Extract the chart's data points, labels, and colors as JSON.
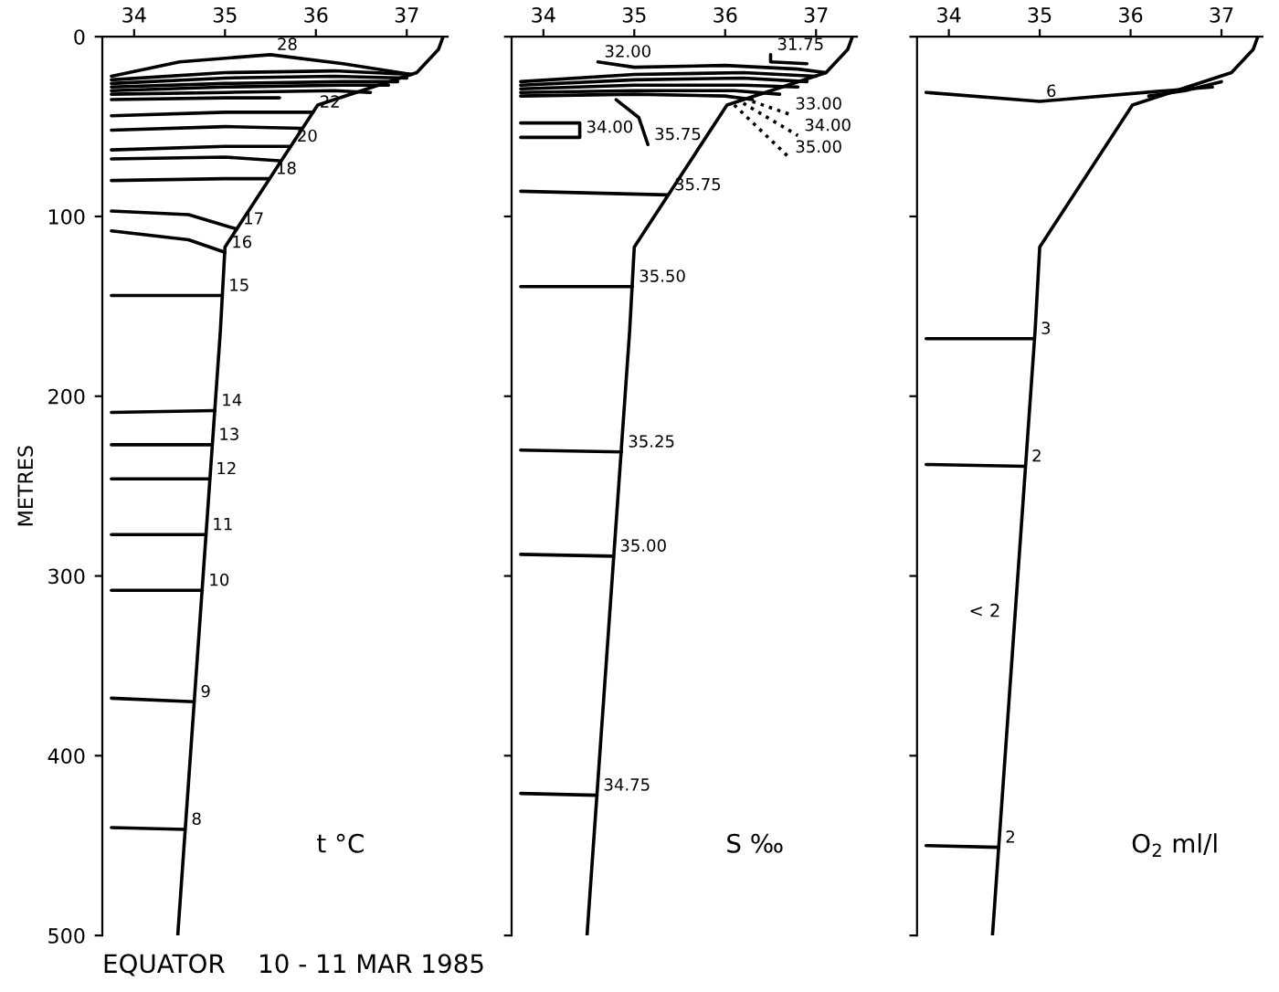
{
  "chart_data": [
    {
      "type": "line",
      "title": "EQUATOR    10 - 11 MAR 1985",
      "ylabel": "METRES",
      "xlim": [
        33.65,
        37.45
      ],
      "ylim": [
        500,
        0
      ],
      "xticks": [
        34,
        35,
        36,
        37
      ],
      "yticks": [
        0,
        100,
        200,
        300,
        400,
        500
      ],
      "grid": false,
      "legend": false,
      "series": [
        {
          "color": "#000000",
          "x": [
            37.4,
            37.35,
            37.11,
            36.02,
            35.0,
            34.95,
            34.48
          ],
          "values": [
            0,
            7,
            20,
            38,
            117,
            163,
            500
          ]
        },
        {
          "color": "#000000",
          "x": [
            33.75,
            34.5,
            35.5,
            36.3,
            37.05
          ],
          "values": [
            22,
            14,
            10,
            15,
            21
          ]
        },
        {
          "color": "#000000",
          "x": [
            33.75,
            35.0,
            36.2,
            37.05
          ],
          "values": [
            24,
            20,
            19,
            21
          ]
        },
        {
          "color": "#000000",
          "x": [
            33.75,
            35.0,
            36.2,
            37.0
          ],
          "values": [
            26,
            23,
            22,
            23
          ]
        },
        {
          "color": "#000000",
          "x": [
            33.75,
            35.0,
            36.3,
            36.9
          ],
          "values": [
            28,
            26,
            25,
            25
          ]
        },
        {
          "color": "#000000",
          "x": [
            33.75,
            35.0,
            36.3,
            36.8
          ],
          "values": [
            30,
            28,
            27,
            27
          ]
        },
        {
          "color": "#000000",
          "x": [
            33.75,
            35.0,
            36.2,
            36.6
          ],
          "values": [
            32,
            31,
            30,
            31
          ]
        },
        {
          "color": "#000000",
          "x": [
            33.75,
            35.0,
            35.6
          ],
          "values": [
            35,
            34,
            34
          ]
        },
        {
          "color": "#000000",
          "x": [
            33.75,
            35.0,
            35.97
          ],
          "values": [
            44,
            42,
            42
          ]
        },
        {
          "color": "#000000",
          "x": [
            33.75,
            35.0,
            35.85
          ],
          "values": [
            52,
            50,
            51
          ]
        },
        {
          "color": "#000000",
          "x": [
            33.75,
            35.0,
            35.72
          ],
          "values": [
            63,
            61,
            61
          ]
        },
        {
          "color": "#000000",
          "x": [
            33.75,
            35.0,
            35.6
          ],
          "values": [
            68,
            67,
            69
          ]
        },
        {
          "color": "#000000",
          "x": [
            33.75,
            35.0,
            35.49
          ],
          "values": [
            80,
            79,
            79
          ]
        },
        {
          "color": "#000000",
          "x": [
            33.75,
            34.6,
            35.13
          ],
          "values": [
            97,
            99,
            107
          ]
        },
        {
          "color": "#000000",
          "x": [
            33.75,
            34.6,
            35.0
          ],
          "values": [
            108,
            113,
            120
          ]
        },
        {
          "color": "#000000",
          "x": [
            33.75,
            34.97
          ],
          "values": [
            144,
            144
          ]
        },
        {
          "color": "#000000",
          "x": [
            33.75,
            34.89
          ],
          "values": [
            209,
            208
          ]
        },
        {
          "color": "#000000",
          "x": [
            33.75,
            34.86
          ],
          "values": [
            227,
            227
          ]
        },
        {
          "color": "#000000",
          "x": [
            33.75,
            34.83
          ],
          "values": [
            246,
            246
          ]
        },
        {
          "color": "#000000",
          "x": [
            33.75,
            34.79
          ],
          "values": [
            277,
            277
          ]
        },
        {
          "color": "#000000",
          "x": [
            33.75,
            34.75
          ],
          "values": [
            308,
            308
          ]
        },
        {
          "color": "#000000",
          "x": [
            33.75,
            34.66
          ],
          "values": [
            368,
            370
          ]
        },
        {
          "color": "#000000",
          "x": [
            33.75,
            34.56
          ],
          "values": [
            440,
            441
          ]
        }
      ],
      "annotations": [
        "t °C",
        {
          "text": "28",
          "x": 35.5,
          "y": 10
        },
        {
          "text": "22",
          "x": 35.97,
          "y": 42
        },
        {
          "text": "20",
          "x": 35.72,
          "y": 61
        },
        {
          "text": "18",
          "x": 35.49,
          "y": 79
        },
        {
          "text": "17",
          "x": 35.13,
          "y": 107
        },
        {
          "text": "16",
          "x": 35.0,
          "y": 120
        },
        {
          "text": "15",
          "x": 34.97,
          "y": 144
        },
        {
          "text": "14",
          "x": 34.89,
          "y": 208
        },
        {
          "text": "13",
          "x": 34.86,
          "y": 227
        },
        {
          "text": "12",
          "x": 34.83,
          "y": 246
        },
        {
          "text": "11",
          "x": 34.79,
          "y": 277
        },
        {
          "text": "10",
          "x": 34.75,
          "y": 308
        },
        {
          "text": "9",
          "x": 34.66,
          "y": 370
        },
        {
          "text": "8",
          "x": 34.56,
          "y": 441
        }
      ]
    },
    {
      "type": "line",
      "xlim": [
        33.65,
        37.45
      ],
      "ylim": [
        500,
        0
      ],
      "xticks": [
        34,
        35,
        36,
        37
      ],
      "yticks": [
        0,
        100,
        200,
        300,
        400,
        500
      ],
      "tick_labels": "x",
      "grid": false,
      "legend": false,
      "series": [
        {
          "color": "#000000",
          "x": [
            37.4,
            37.35,
            37.11,
            36.02,
            35.0,
            34.95,
            34.48
          ],
          "values": [
            0,
            7,
            20,
            38,
            117,
            163,
            500
          ]
        },
        {
          "color": "#000000",
          "x": [
            34.6,
            35.0,
            36.0,
            36.8,
            37.11
          ],
          "values": [
            14,
            17,
            16,
            18,
            20
          ]
        },
        {
          "color": "#000000",
          "x": [
            36.5,
            36.5,
            36.9
          ],
          "values": [
            10,
            14,
            15
          ]
        },
        {
          "color": "#000000",
          "x": [
            33.75,
            35.0,
            36.2,
            37.0
          ],
          "values": [
            25,
            21,
            20,
            22
          ]
        },
        {
          "color": "#000000",
          "x": [
            33.75,
            35.0,
            36.2,
            36.9
          ],
          "values": [
            27,
            24,
            23,
            25
          ]
        },
        {
          "color": "#000000",
          "x": [
            33.75,
            35.0,
            36.2,
            36.8
          ],
          "values": [
            29,
            27,
            27,
            28
          ]
        },
        {
          "color": "#000000",
          "x": [
            33.75,
            35.0,
            36.1,
            36.6
          ],
          "values": [
            31,
            30,
            30,
            32
          ]
        },
        {
          "color": "#000000",
          "x": [
            33.75,
            35.0,
            36.0,
            36.3
          ],
          "values": [
            33,
            32,
            33,
            35
          ]
        },
        {
          "color": "#000000",
          "x": [
            33.75,
            34.4,
            34.4,
            33.75
          ],
          "values": [
            48,
            48,
            56,
            56
          ]
        },
        {
          "color": "#000000",
          "x": [
            34.8,
            35.05,
            35.15
          ],
          "values": [
            35,
            45,
            60
          ]
        },
        {
          "color": "#000000",
          "line_style": "dotted",
          "x": [
            36.3,
            36.7
          ],
          "values": [
            36,
            43
          ]
        },
        {
          "color": "#000000",
          "line_style": "dotted",
          "x": [
            36.2,
            36.8
          ],
          "values": [
            37,
            55
          ]
        },
        {
          "color": "#000000",
          "line_style": "dotted",
          "x": [
            36.1,
            36.7
          ],
          "values": [
            38,
            67
          ]
        },
        {
          "color": "#000000",
          "x": [
            33.75,
            35.37
          ],
          "values": [
            86,
            88
          ]
        },
        {
          "color": "#000000",
          "x": [
            33.75,
            34.98
          ],
          "values": [
            139,
            139
          ]
        },
        {
          "color": "#000000",
          "x": [
            33.75,
            34.86
          ],
          "values": [
            230,
            231
          ]
        },
        {
          "color": "#000000",
          "x": [
            33.75,
            34.77
          ],
          "values": [
            288,
            289
          ]
        },
        {
          "color": "#000000",
          "x": [
            33.75,
            34.59
          ],
          "values": [
            421,
            422
          ]
        }
      ],
      "annotations": [
        "S ‰",
        {
          "text": "32.00",
          "x": 34.6,
          "y": 14
        },
        {
          "text": "31.75",
          "x": 36.5,
          "y": 10
        },
        {
          "text": "33.00",
          "x": 36.7,
          "y": 43
        },
        {
          "text": "34.00",
          "x": 36.8,
          "y": 55
        },
        {
          "text": "35.00",
          "x": 36.7,
          "y": 67
        },
        {
          "text": "34.00",
          "x": 34.4,
          "y": 56
        },
        {
          "text": "35.75",
          "x": 35.15,
          "y": 60
        },
        {
          "text": "35.75",
          "x": 35.37,
          "y": 88
        },
        {
          "text": "35.50",
          "x": 34.98,
          "y": 139
        },
        {
          "text": "35.25",
          "x": 34.86,
          "y": 231
        },
        {
          "text": "35.00",
          "x": 34.77,
          "y": 289
        },
        {
          "text": "34.75",
          "x": 34.59,
          "y": 422
        }
      ]
    },
    {
      "type": "line",
      "xlim": [
        33.65,
        37.45
      ],
      "ylim": [
        500,
        0
      ],
      "xticks": [
        34,
        35,
        36,
        37
      ],
      "yticks": [
        0,
        100,
        200,
        300,
        400,
        500
      ],
      "tick_labels": "x",
      "grid": false,
      "legend": false,
      "series": [
        {
          "color": "#000000",
          "x": [
            37.4,
            37.35,
            37.11,
            36.02,
            35.0,
            34.95,
            34.48
          ],
          "values": [
            0,
            7,
            20,
            38,
            117,
            163,
            500
          ]
        },
        {
          "color": "#000000",
          "x": [
            33.75,
            35.0,
            36.4,
            36.9
          ],
          "values": [
            31,
            36,
            30,
            28
          ]
        },
        {
          "color": "#000000",
          "x": [
            36.2,
            36.6,
            37.0
          ],
          "values": [
            33,
            30,
            25
          ]
        },
        {
          "color": "#000000",
          "x": [
            33.75,
            34.94
          ],
          "values": [
            168,
            168
          ]
        },
        {
          "color": "#000000",
          "x": [
            33.75,
            34.84
          ],
          "values": [
            238,
            239
          ]
        },
        {
          "color": "#000000",
          "x": [
            33.75,
            34.55
          ],
          "values": [
            450,
            451
          ]
        }
      ],
      "annotations": [
        "O$_{2}$ ml/l",
        "< 2",
        {
          "text": "6",
          "x": 35.0,
          "y": 36
        },
        {
          "text": "3",
          "x": 34.94,
          "y": 168
        },
        {
          "text": "2",
          "x": 34.84,
          "y": 239
        },
        {
          "text": "2",
          "x": 34.55,
          "y": 451
        }
      ]
    }
  ]
}
